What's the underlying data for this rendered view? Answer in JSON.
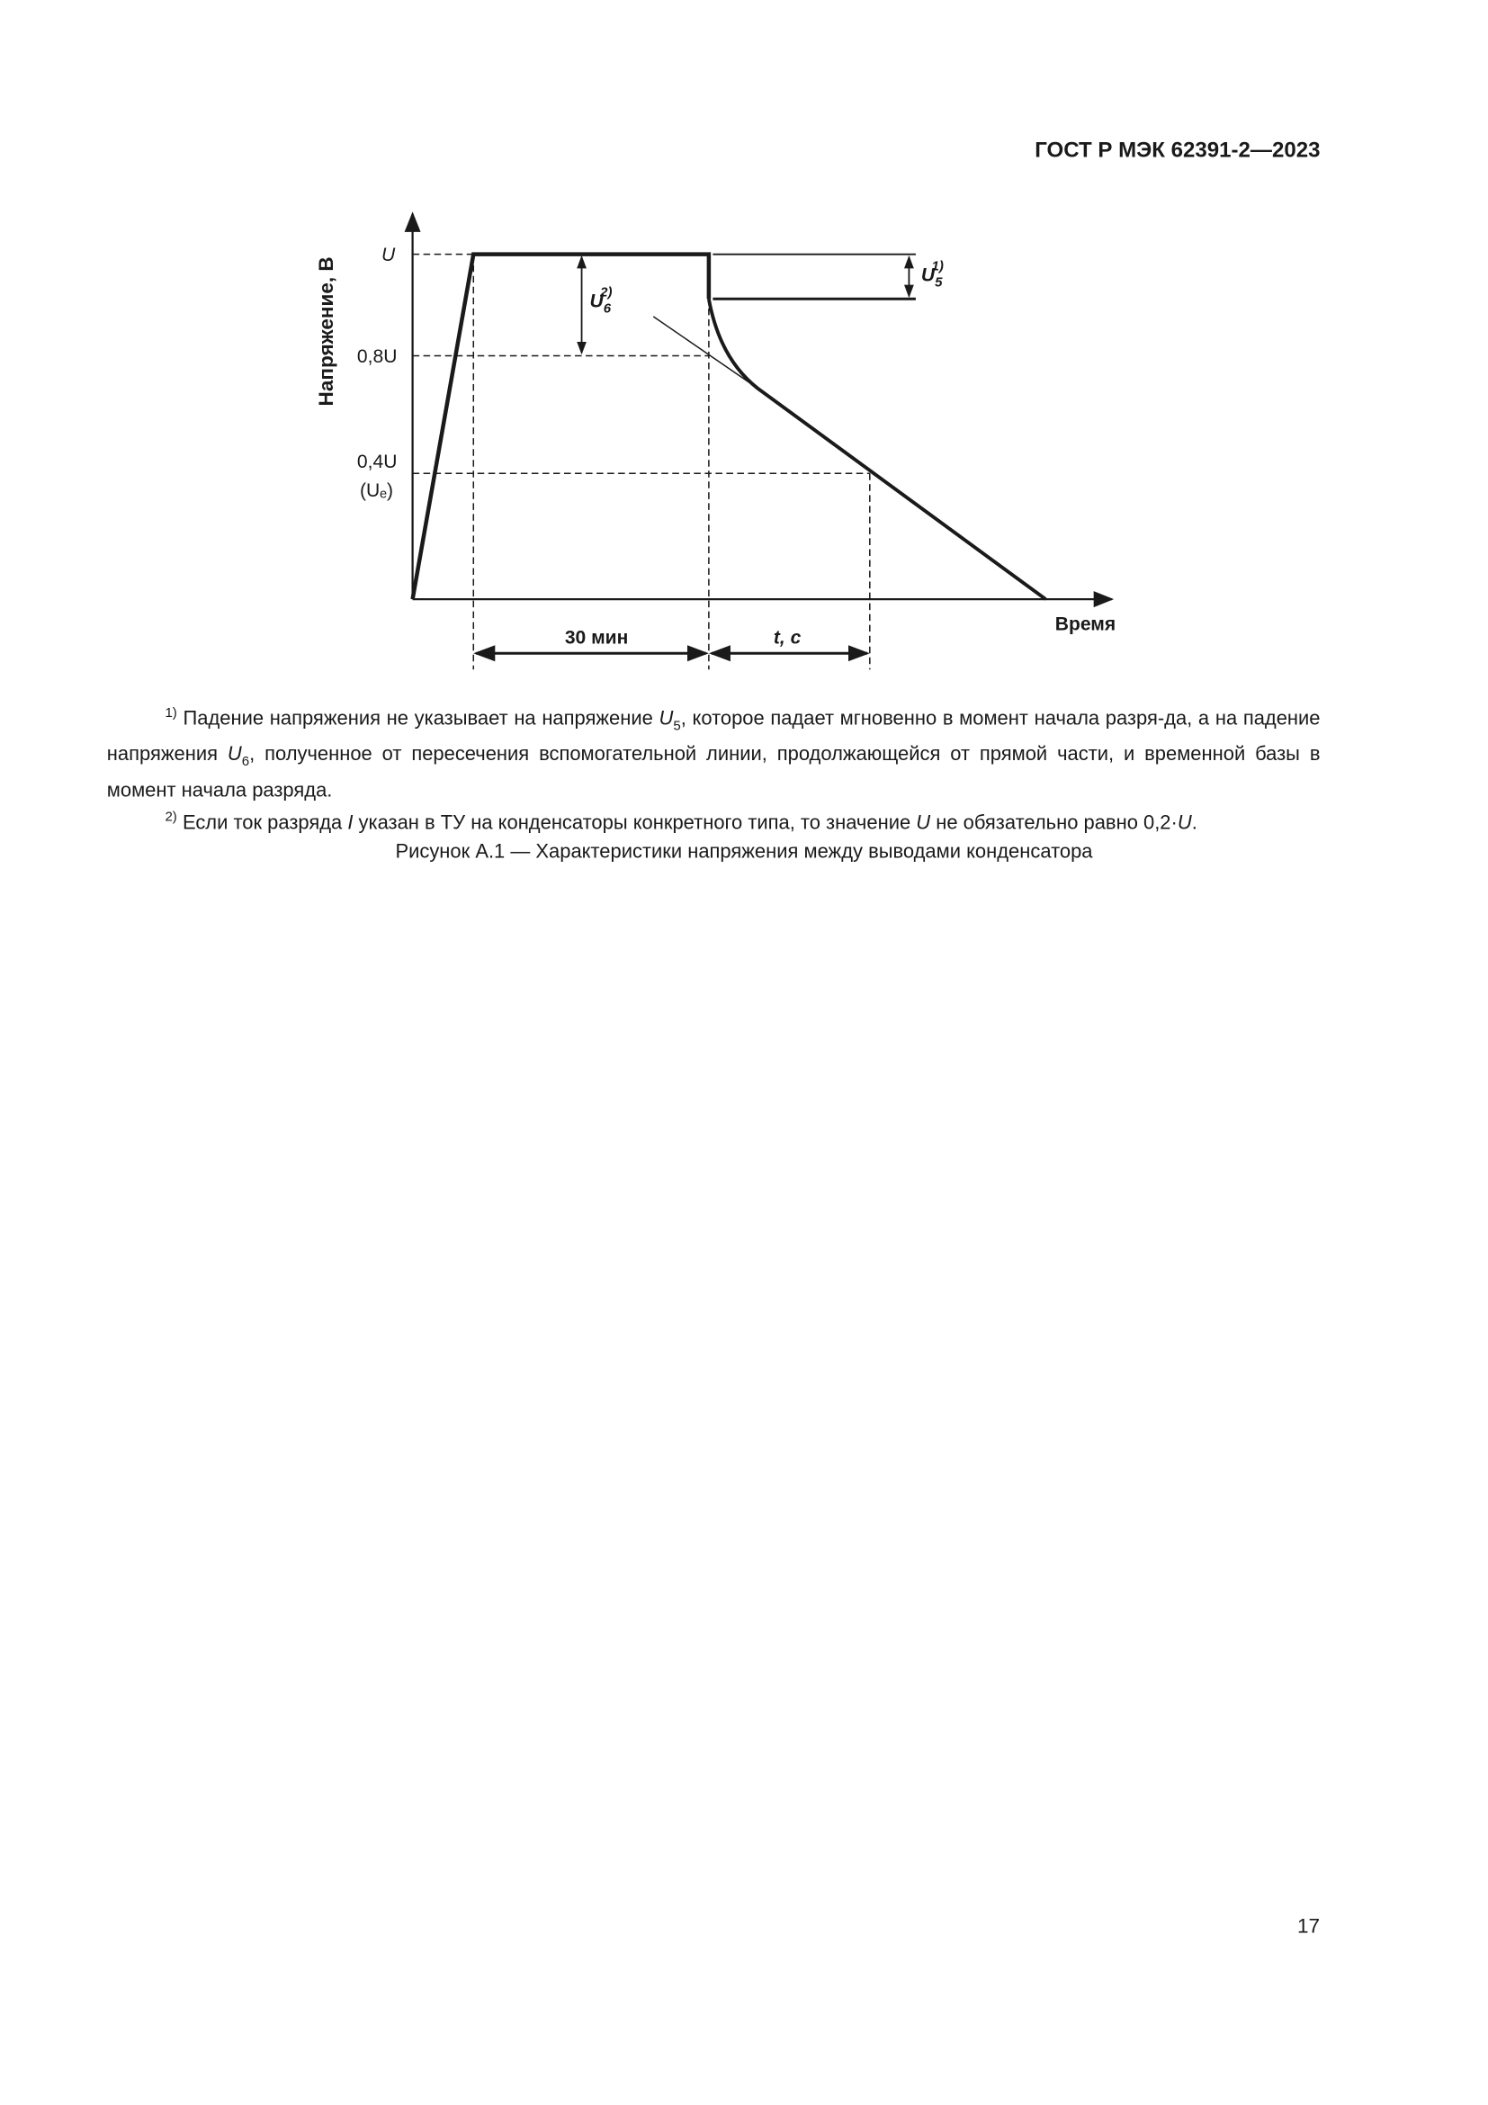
{
  "header": {
    "doc_id": "ГОСТ Р МЭК 62391-2—2023"
  },
  "chart_data": {
    "type": "line",
    "ylabel": "Напряжение, В",
    "xlabel": "Время",
    "y_ticks": [
      "U",
      "0,8U",
      "0,4U",
      "(Uₑ)"
    ],
    "annotations": {
      "u5": "U",
      "u5_sub": "5",
      "u5_sup": "1)",
      "u6": "U",
      "u6_sub": "6",
      "u6_sup": "2)",
      "interval1": "30 мин",
      "interval2": "t, с"
    }
  },
  "footnotes": [
    {
      "mark": "1)",
      "text": "Падение напряжения не указывает на напряжение U5, которое падает мгновенно в момент начала разряда, а на падение напряжения U6, полученное от пересечения вспомогательной линии, продолжающейся от прямой части, и временной базы в момент начала разряда.",
      "parts": [
        "Падение напряжения не указывает на напряжение ",
        "U",
        "5",
        ", которое падает мгновенно в момент начала разря-да, а на падение напряжения ",
        "U",
        "6",
        ", полученное от пересечения вспомогательной линии, продолжающейся от прямой части, и временной базы в момент начала разряда."
      ]
    },
    {
      "mark": "2)",
      "text": "Если ток разряда I указан в ТУ на конденсаторы конкретного типа, то значение U не обязательно равно 0,2·U.",
      "parts": [
        "Если ток разряда ",
        "I",
        " указан в ТУ на конденсаторы конкретного типа, то значение ",
        "U",
        " не обязательно равно 0,2·",
        "U",
        "."
      ]
    }
  ],
  "caption": "Рисунок А.1 — Характеристики напряжения между выводами конденсатора",
  "page_number": "17"
}
